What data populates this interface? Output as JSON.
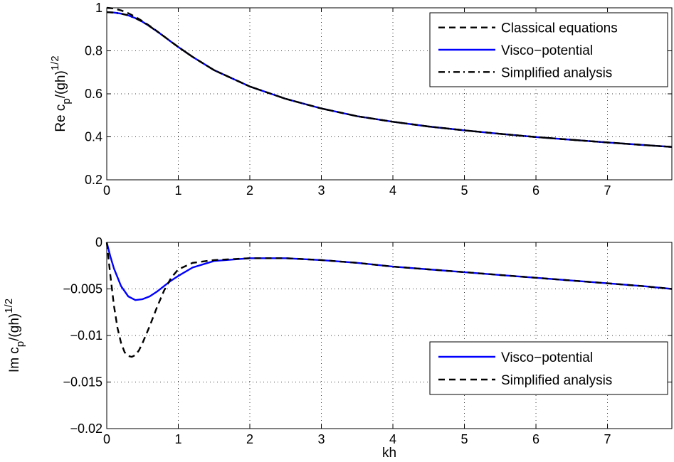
{
  "chart_data": [
    {
      "type": "line",
      "ylabel": "Re c_p/(gh)^1/2",
      "ylabel_parts": {
        "main": "Re c",
        "sub": "p",
        "mid": "/(gh)",
        "sup": "1/2"
      },
      "xlim": [
        0,
        7.9
      ],
      "ylim": [
        0.2,
        1.0
      ],
      "xticks": [
        "0",
        "1",
        "2",
        "3",
        "4",
        "5",
        "6",
        "7"
      ],
      "yticks": [
        "0.2",
        "0.4",
        "0.6",
        "0.8",
        "1"
      ],
      "grid": true,
      "legend_position": "top-right",
      "series": [
        {
          "name": "Classical equations",
          "style": "dashed",
          "color": "#000000",
          "x": [
            0,
            0.1,
            0.2,
            0.3,
            0.4,
            0.5,
            0.6,
            0.7,
            0.8,
            0.9,
            1.0,
            1.2,
            1.5,
            2.0,
            2.5,
            3.0,
            3.5,
            4.0,
            4.5,
            5.0,
            5.5,
            6.0,
            6.5,
            7.0,
            7.5,
            7.9
          ],
          "y": [
            1.0,
            0.997,
            0.988,
            0.975,
            0.958,
            0.938,
            0.916,
            0.892,
            0.867,
            0.842,
            0.818,
            0.772,
            0.71,
            0.634,
            0.577,
            0.532,
            0.496,
            0.47,
            0.448,
            0.43,
            0.414,
            0.399,
            0.386,
            0.374,
            0.362,
            0.353
          ]
        },
        {
          "name": "Visco−potential",
          "style": "solid",
          "color": "#0000ff",
          "x": [
            0,
            0.1,
            0.2,
            0.3,
            0.4,
            0.5,
            0.6,
            0.7,
            0.8,
            0.9,
            1.0,
            1.2,
            1.5,
            2.0,
            2.5,
            3.0,
            3.5,
            4.0,
            4.5,
            5.0,
            5.5,
            6.0,
            6.5,
            7.0,
            7.5,
            7.9
          ],
          "y": [
            0.98,
            0.978,
            0.973,
            0.965,
            0.952,
            0.935,
            0.914,
            0.891,
            0.867,
            0.842,
            0.818,
            0.772,
            0.71,
            0.634,
            0.577,
            0.532,
            0.496,
            0.47,
            0.448,
            0.43,
            0.414,
            0.399,
            0.386,
            0.374,
            0.362,
            0.353
          ]
        },
        {
          "name": "Simplified analysis",
          "style": "dashdot",
          "color": "#000000",
          "x": [
            0,
            0.1,
            0.2,
            0.3,
            0.4,
            0.5,
            0.6,
            0.7,
            0.8,
            0.9,
            1.0,
            1.2,
            1.5,
            2.0,
            2.5,
            3.0,
            3.5,
            4.0,
            4.5,
            5.0,
            5.5,
            6.0,
            6.5,
            7.0,
            7.5,
            7.9
          ],
          "y": [
            0.98,
            0.978,
            0.973,
            0.965,
            0.952,
            0.935,
            0.914,
            0.891,
            0.867,
            0.842,
            0.818,
            0.772,
            0.71,
            0.634,
            0.577,
            0.532,
            0.496,
            0.47,
            0.448,
            0.43,
            0.414,
            0.399,
            0.386,
            0.374,
            0.362,
            0.353
          ]
        }
      ]
    },
    {
      "type": "line",
      "xlabel": "kh",
      "ylabel": "Im c_p/(gh)^1/2",
      "ylabel_parts": {
        "main": "Im c",
        "sub": "p",
        "mid": "/(gh)",
        "sup": "1/2"
      },
      "xlim": [
        0,
        7.9
      ],
      "ylim": [
        -0.02,
        0
      ],
      "xticks": [
        "0",
        "1",
        "2",
        "3",
        "4",
        "5",
        "6",
        "7"
      ],
      "yticks": [
        "−0.02",
        "−0.015",
        "−0.01",
        "−0.005",
        "0"
      ],
      "grid": true,
      "legend_position": "bottom-right",
      "series": [
        {
          "name": "Visco−potential",
          "style": "solid",
          "color": "#0000ff",
          "x": [
            0,
            0.05,
            0.1,
            0.2,
            0.3,
            0.4,
            0.5,
            0.6,
            0.7,
            0.8,
            0.9,
            1.0,
            1.2,
            1.5,
            2.0,
            2.5,
            3.0,
            3.5,
            4.0,
            4.5,
            5.0,
            5.5,
            6.0,
            6.5,
            7.0,
            7.5,
            7.9
          ],
          "y": [
            0,
            -0.0015,
            -0.0028,
            -0.0047,
            -0.0058,
            -0.0062,
            -0.0061,
            -0.0058,
            -0.0053,
            -0.0047,
            -0.0041,
            -0.0036,
            -0.0027,
            -0.002,
            -0.0017,
            -0.0017,
            -0.0019,
            -0.0022,
            -0.0026,
            -0.0029,
            -0.0032,
            -0.0035,
            -0.0038,
            -0.0041,
            -0.0044,
            -0.0047,
            -0.005
          ]
        },
        {
          "name": "Simplified analysis",
          "style": "dashed",
          "color": "#000000",
          "x": [
            0,
            0.05,
            0.1,
            0.15,
            0.2,
            0.25,
            0.3,
            0.35,
            0.4,
            0.45,
            0.5,
            0.6,
            0.7,
            0.8,
            0.9,
            1.0,
            1.2,
            1.5,
            2.0,
            2.5,
            3.0,
            3.5,
            4.0,
            4.5,
            5.0,
            5.5,
            6.0,
            6.5,
            7.0,
            7.5,
            7.9
          ],
          "y": [
            0,
            -0.0035,
            -0.0068,
            -0.0092,
            -0.0108,
            -0.0118,
            -0.0122,
            -0.0123,
            -0.0121,
            -0.0116,
            -0.0108,
            -0.009,
            -0.007,
            -0.0052,
            -0.0038,
            -0.0029,
            -0.0022,
            -0.0019,
            -0.0017,
            -0.0017,
            -0.0019,
            -0.0022,
            -0.0026,
            -0.0029,
            -0.0032,
            -0.0035,
            -0.0038,
            -0.0041,
            -0.0044,
            -0.0047,
            -0.005
          ]
        }
      ]
    }
  ]
}
